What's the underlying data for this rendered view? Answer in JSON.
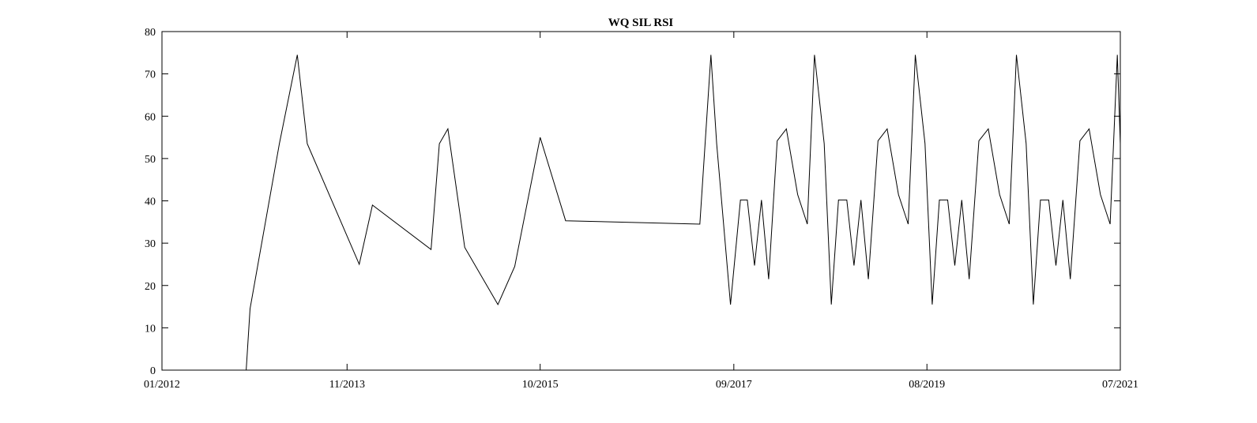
{
  "chart_data": {
    "type": "line",
    "title": "WQ SIL RSI",
    "xlabel": "",
    "ylabel": "",
    "x_tick_labels": [
      "01/2012",
      "11/2013",
      "10/2015",
      "09/2017",
      "08/2019",
      "07/2021"
    ],
    "x_tick_dates": [
      "2012-01-01",
      "2013-11-01",
      "2015-10-01",
      "2017-09-01",
      "2019-08-01",
      "2021-07-01"
    ],
    "xlim": [
      "2012-01-01",
      "2021-07-01"
    ],
    "ylim": [
      0,
      80
    ],
    "y_ticks": [
      0,
      10,
      20,
      30,
      40,
      50,
      60,
      70,
      80
    ],
    "grid": false,
    "line_color": "#000000",
    "series": [
      {
        "x": [
          "2012-01-01",
          "2012-11-01",
          "2012-11-15",
          "2013-03-01",
          "2013-05-05",
          "2013-06-10",
          "2013-12-15",
          "2014-02-01",
          "2014-09-01",
          "2014-10-01",
          "2014-11-01",
          "2015-01-01",
          "2015-05-01",
          "2015-07-01",
          "2015-10-01",
          "2016-01-01",
          "2017-05-01",
          "2017-06-10",
          "2017-07-01",
          "2017-08-20",
          "2017-09-25",
          "2017-10-20",
          "2017-11-15",
          "2017-12-10",
          "2018-01-05",
          "2018-02-05",
          "2018-03-10",
          "2018-04-20",
          "2018-05-25",
          "2018-06-20",
          "2018-07-25",
          "2018-08-20",
          "2018-09-15",
          "2018-10-15",
          "2018-11-10",
          "2018-12-05",
          "2019-01-01",
          "2019-02-05",
          "2019-03-10",
          "2019-04-20",
          "2019-05-25",
          "2019-06-20",
          "2019-07-25",
          "2019-08-20",
          "2019-09-15",
          "2019-10-15",
          "2019-11-10",
          "2019-12-05",
          "2020-01-01",
          "2020-02-05",
          "2020-03-10",
          "2020-04-20",
          "2020-05-25",
          "2020-06-20",
          "2020-07-25",
          "2020-08-20",
          "2020-09-15",
          "2020-10-15",
          "2020-11-10",
          "2020-12-05",
          "2021-01-01",
          "2021-02-05",
          "2021-03-10",
          "2021-04-20",
          "2021-05-25",
          "2021-06-20",
          "2021-07-01",
          "2021-07-01"
        ],
        "y": [
          0,
          0,
          14.5,
          53.5,
          74.5,
          53.5,
          25,
          39,
          28.5,
          53.5,
          57,
          29,
          15.5,
          24.5,
          55,
          35.3,
          34.5,
          74.5,
          53.5,
          15.5,
          40.2,
          40.2,
          24.7,
          40.2,
          21.5,
          54.2,
          57,
          41.5,
          34.5,
          74.5,
          53.5,
          15.5,
          40.2,
          40.2,
          24.7,
          40.2,
          21.5,
          54.2,
          57,
          41.5,
          34.5,
          74.5,
          53.5,
          15.5,
          40.2,
          40.2,
          24.7,
          40.2,
          21.5,
          54.2,
          57,
          41.5,
          34.5,
          74.5,
          53.5,
          15.5,
          40.2,
          40.2,
          24.7,
          40.2,
          21.5,
          54.2,
          57,
          41.5,
          34.5,
          74.5,
          53.5,
          15.5
        ]
      }
    ]
  }
}
